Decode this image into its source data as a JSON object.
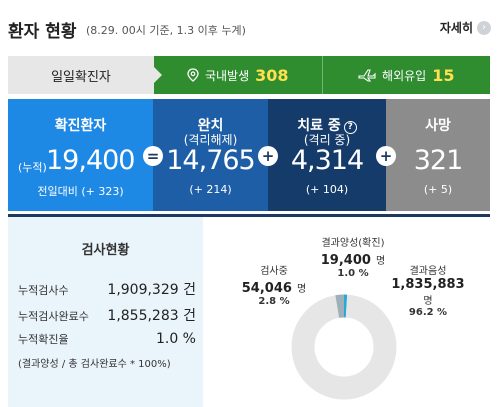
{
  "header": {
    "title": "환자 현황",
    "subtitle": "(8.29. 00시 기준, 1.3 이후 누계)",
    "detail_label": "자세히",
    "detail_icon": "›"
  },
  "tabs": {
    "daily_label": "일일확진자",
    "domestic_label": "국내발생",
    "domestic_value": "308",
    "overseas_label": "해외유입",
    "overseas_value": "15"
  },
  "cards": {
    "confirmed": {
      "label": "확진환자",
      "prefix": "(누적)",
      "value": "19,400",
      "delta": "전일대비 (+ 323)"
    },
    "released": {
      "label": "완치",
      "sublabel": "(격리해제)",
      "value": "14,765",
      "delta": "(+ 214)"
    },
    "treatment": {
      "label": "치료 중",
      "sublabel": "(격리 중)",
      "value": "4,314",
      "delta": "(+ 104)",
      "help": "?"
    },
    "death": {
      "label": "사망",
      "value": "321",
      "delta": "(+ 5)"
    },
    "op_equals": "=",
    "op_plus": "+"
  },
  "tests": {
    "title": "검사현황",
    "rows": [
      {
        "label": "누적검사수",
        "value": "1,909,329 건"
      },
      {
        "label": "누적검사완료수",
        "value": "1,855,283 건"
      },
      {
        "label": "누적확진율",
        "value": "1.0 %"
      }
    ],
    "note": "(결과양성 / 총 검사완료수 * 100%)"
  },
  "donut": {
    "positive": {
      "name": "결과양성(확진)",
      "value": "19,400",
      "unit": "명",
      "pct": "1.0 %",
      "fraction": 0.01,
      "color": "#2aa8d8"
    },
    "testing": {
      "name": "검사중",
      "value": "54,046",
      "unit": "명",
      "pct": "2.8 %",
      "fraction": 0.028,
      "color": "#9fb0b8"
    },
    "negative": {
      "name": "결과음성",
      "value": "1,835,883",
      "unit": "명",
      "pct": "96.2 %",
      "fraction": 0.962,
      "color": "#e6e6e6"
    }
  }
}
